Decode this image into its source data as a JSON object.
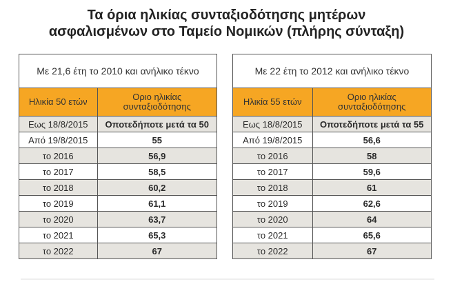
{
  "title": {
    "line1": "Τα όρια ηλικίας συνταξιοδότησης μητέρων",
    "line2": "ασφαλισμένων στο Ταμείο Νομικών (πλήρης σύνταξη)"
  },
  "colors": {
    "header": "#f6a623",
    "grey_row": "#e6e4df"
  },
  "tables": [
    {
      "caption": "Με 21,6 έτη το 2010 και ανήλικο τέκνο",
      "headers": [
        "Ηλικία 50 ετών",
        "Οριο ηλικίας συνταξιοδότησης"
      ],
      "rows": [
        [
          "Εως  18/8/2015",
          "Οποτεδήποτε μετά τα 50"
        ],
        [
          "Από 19/8/2015",
          "55"
        ],
        [
          "το 2016",
          "56,9"
        ],
        [
          "το 2017",
          "58,5"
        ],
        [
          "το 2018",
          "60,2"
        ],
        [
          "το 2019",
          "61,1"
        ],
        [
          "το 2020",
          "63,7"
        ],
        [
          "το 2021",
          "65,3"
        ],
        [
          "το 2022",
          "67"
        ]
      ]
    },
    {
      "caption": "Με 22 έτη το 2012 και ανήλικο τέκνο",
      "headers": [
        "Ηλικία 55 ετών",
        "Οριο ηλικίας συνταξιοδότησης"
      ],
      "rows": [
        [
          "Εως  18/8/2015",
          "Οποτεδήποτε μετά τα 55"
        ],
        [
          "Από 19/8/2015",
          "56,6"
        ],
        [
          "το 2016",
          "58"
        ],
        [
          "το 2017",
          "59,6"
        ],
        [
          "το 2018",
          "61"
        ],
        [
          "το 2019",
          "62,6"
        ],
        [
          "το 2020",
          "64"
        ],
        [
          "το 2021",
          "65,6"
        ],
        [
          "το 2022",
          "67"
        ]
      ]
    }
  ]
}
